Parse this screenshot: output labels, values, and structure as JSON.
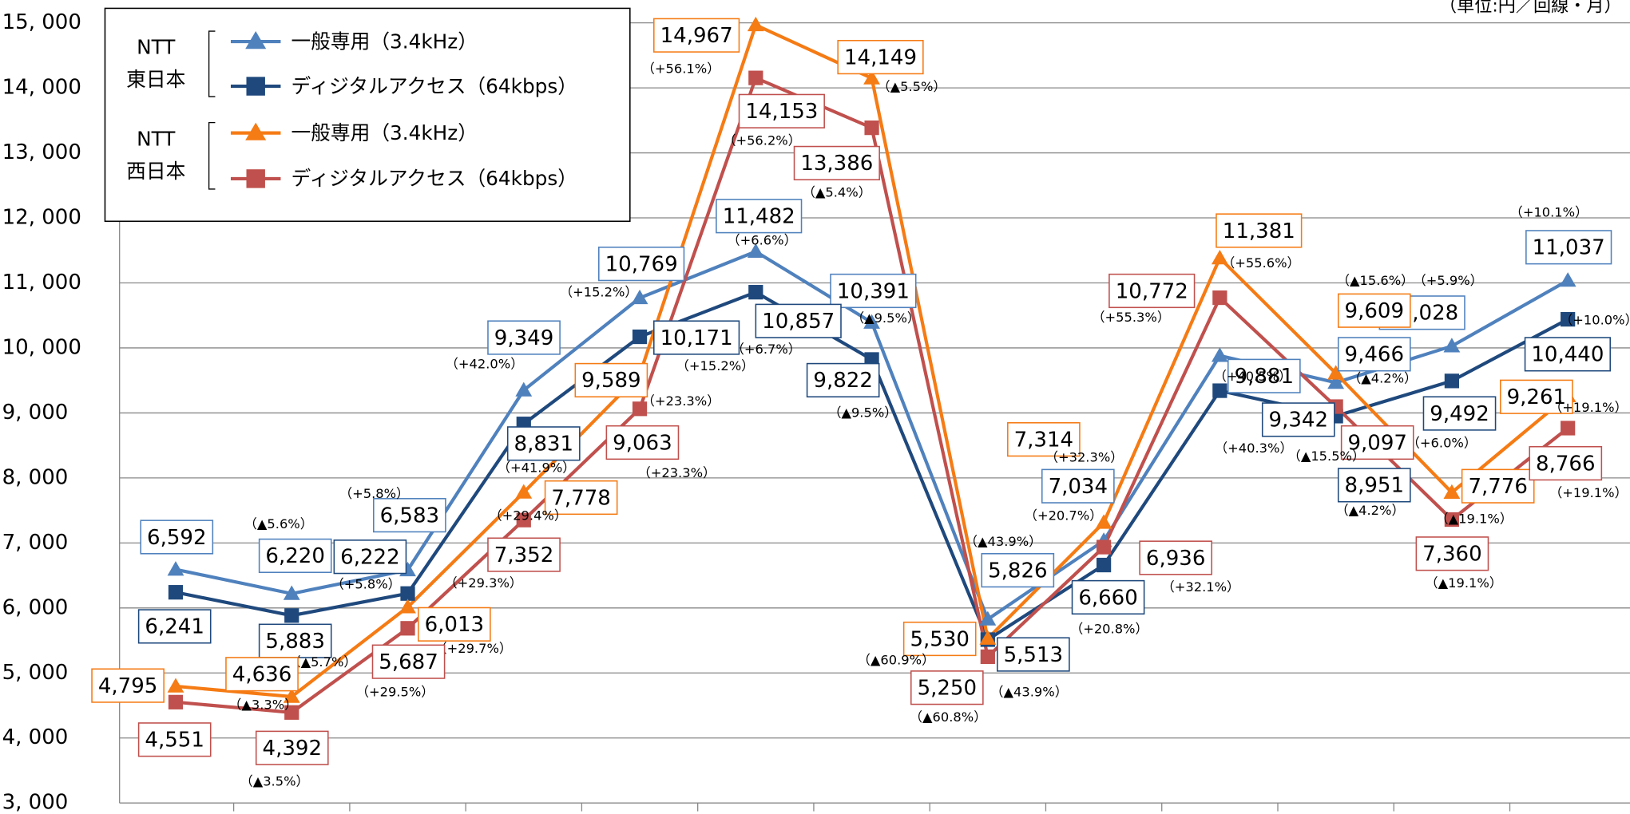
{
  "chart_data": {
    "type": "line",
    "unit_note": "（単位:円／回線・月）",
    "categories": [
      null,
      null,
      null,
      null,
      null,
      null,
      null,
      null,
      null,
      null,
      null,
      null,
      null
    ],
    "ylim": [
      3000,
      15000
    ],
    "yticks": [
      {
        "value": 3000,
        "label": "3, 000"
      },
      {
        "value": 4000,
        "label": "4, 000"
      },
      {
        "value": 5000,
        "label": "5, 000"
      },
      {
        "value": 6000,
        "label": "6, 000"
      },
      {
        "value": 7000,
        "label": "7, 000"
      },
      {
        "value": 8000,
        "label": "8, 000"
      },
      {
        "value": 9000,
        "label": "9, 000"
      },
      {
        "value": 10000,
        "label": "10, 000"
      },
      {
        "value": 11000,
        "label": "11, 000"
      },
      {
        "value": 12000,
        "label": "12, 000"
      },
      {
        "value": 13000,
        "label": "13, 000"
      },
      {
        "value": 14000,
        "label": "14, 000"
      },
      {
        "value": 15000,
        "label": "15, 000"
      }
    ],
    "grid": true,
    "legend": "upper left",
    "legend_groups": [
      [
        "NTT",
        "東日本"
      ],
      [
        "NTT",
        "西日本"
      ]
    ],
    "series": [
      {
        "name": "一般専用（3.4kHz）",
        "color": "#4f81bd",
        "marker": "triangle",
        "values": [
          6592,
          6220,
          6583,
          9349,
          10769,
          11482,
          10391,
          5826,
          7034,
          9881,
          9466,
          10028,
          11037
        ],
        "value_labels": [
          "6,592",
          "6,220",
          "6,583",
          "9,349",
          "10,769",
          "11,482",
          "10,391",
          "5,826",
          "7,034",
          "9,881",
          "9,466",
          "10,028",
          "11,037"
        ],
        "changes": [
          null,
          "（▲5.6%）",
          "（+5.8%）",
          "（+42.0%）",
          "（+15.2%）",
          "（+6.6%）",
          "（▲9.5%）",
          "（▲43.9%）",
          "（+20.7%）",
          "（+40.5%）",
          "（▲4.2%）",
          "（+5.9%）",
          "（+10.1%）"
        ]
      },
      {
        "name": "ディジタルアクセス（64kbps）",
        "color": "#1f497d",
        "marker": "square",
        "values": [
          6241,
          5883,
          6222,
          8831,
          10171,
          10857,
          9822,
          5513,
          6660,
          9342,
          8951,
          9492,
          10440
        ],
        "value_labels": [
          "6,241",
          "5,883",
          "6,222",
          "8,831",
          "10,171",
          "10,857",
          "9,822",
          "5,513",
          "6,660",
          "9,342",
          "8,951",
          "9,492",
          "10,440"
        ],
        "changes": [
          null,
          "（▲5.7%）",
          "（+5.8%）",
          "（+41.9%）",
          "（+15.2%）",
          "（+6.7%）",
          "（▲9.5%）",
          "（▲43.9%）",
          "（+20.8%）",
          "（+40.3%）",
          "（▲4.2%）",
          "（+6.0%）",
          "（+10.0%）"
        ]
      },
      {
        "name": "一般専用（3.4kHz）",
        "color": "#f57b14",
        "marker": "triangle",
        "values": [
          4795,
          4636,
          6013,
          7778,
          9589,
          14967,
          14149,
          5530,
          7314,
          11381,
          9609,
          7776,
          9261
        ],
        "value_labels": [
          "4,795",
          "4,636",
          "6,013",
          "7,778",
          "9,589",
          "14,967",
          "14,149",
          "5,530",
          "7,314",
          "11,381",
          "9,609",
          "7,776",
          "9,261"
        ],
        "changes": [
          null,
          "（▲3.3%）",
          "（+29.7%）",
          "（+29.4%）",
          "（+23.3%）",
          "（+56.1%）",
          "（▲5.5%）",
          "（▲60.9%）",
          "（+32.3%）",
          "（+55.6%）",
          "（▲15.6%）",
          "（▲19.1%）",
          "（+19.1%）"
        ]
      },
      {
        "name": "ディジタルアクセス（64kbps）",
        "color": "#c0504d",
        "marker": "square",
        "values": [
          4551,
          4392,
          5687,
          7352,
          9063,
          14153,
          13386,
          5250,
          6936,
          10772,
          9097,
          7360,
          8766
        ],
        "value_labels": [
          "4,551",
          "4,392",
          "5,687",
          "7,352",
          "9,063",
          "14,153",
          "13,386",
          "5,250",
          "6,936",
          "10,772",
          "9,097",
          "7,360",
          "8,766"
        ],
        "changes": [
          null,
          "（▲3.5%）",
          "（+29.5%）",
          "（+29.3%）",
          "（+23.3%）",
          "（+56.2%）",
          "（▲5.4%）",
          "（▲60.8%）",
          "（+32.1%）",
          "（+55.3%）",
          "（▲15.5%）",
          "（▲19.1%）",
          "（+19.1%）"
        ]
      }
    ]
  }
}
